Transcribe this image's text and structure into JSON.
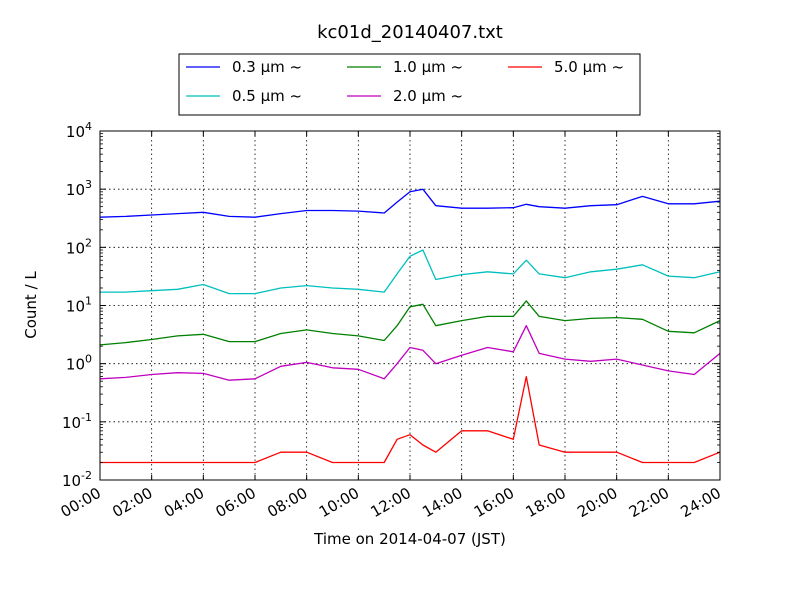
{
  "chart_data": {
    "type": "line",
    "title": "kc01d_20140407.txt",
    "xlabel": "Time on 2014-04-07 (JST)",
    "ylabel": "Count / L",
    "y_scale": "log",
    "ylim": [
      0.01,
      10000
    ],
    "x_range": [
      "00:00",
      "24:00"
    ],
    "x_tick_labels": [
      "00:00",
      "02:00",
      "04:00",
      "06:00",
      "08:00",
      "10:00",
      "12:00",
      "14:00",
      "16:00",
      "18:00",
      "20:00",
      "22:00",
      "24:00"
    ],
    "y_tick_labels": [
      {
        "base": "10",
        "exp": "-2"
      },
      {
        "base": "10",
        "exp": "-1"
      },
      {
        "base": "10",
        "exp": "0"
      },
      {
        "base": "10",
        "exp": "1"
      },
      {
        "base": "10",
        "exp": "2"
      },
      {
        "base": "10",
        "exp": "3"
      },
      {
        "base": "10",
        "exp": "4"
      }
    ],
    "grid": true,
    "legend_position": "top-center (above plot)",
    "series": [
      {
        "name": "0.3 μm ~",
        "color": "#0000ff",
        "x": [
          "00:00",
          "01:00",
          "02:00",
          "03:00",
          "04:00",
          "05:00",
          "06:00",
          "07:00",
          "08:00",
          "09:00",
          "10:00",
          "11:00",
          "11:30",
          "12:00",
          "12:30",
          "13:00",
          "14:00",
          "15:00",
          "16:00",
          "16:30",
          "17:00",
          "18:00",
          "19:00",
          "20:00",
          "21:00",
          "22:00",
          "23:00",
          "24:00"
        ],
        "values": [
          330,
          340,
          360,
          380,
          400,
          340,
          330,
          380,
          430,
          430,
          420,
          390,
          600,
          900,
          1000,
          520,
          470,
          470,
          480,
          550,
          500,
          470,
          520,
          540,
          750,
          560,
          560,
          620
        ]
      },
      {
        "name": "0.5 μm ~",
        "color": "#00bfbf",
        "x": [
          "00:00",
          "01:00",
          "02:00",
          "03:00",
          "04:00",
          "05:00",
          "06:00",
          "07:00",
          "08:00",
          "09:00",
          "10:00",
          "11:00",
          "11:30",
          "12:00",
          "12:30",
          "13:00",
          "14:00",
          "15:00",
          "16:00",
          "16:30",
          "17:00",
          "18:00",
          "19:00",
          "20:00",
          "21:00",
          "22:00",
          "23:00",
          "24:00"
        ],
        "values": [
          17,
          17,
          18,
          19,
          23,
          16,
          16,
          20,
          22,
          20,
          19,
          17,
          35,
          70,
          90,
          28,
          34,
          38,
          35,
          60,
          35,
          30,
          38,
          42,
          50,
          32,
          30,
          38
        ]
      },
      {
        "name": "1.0 μm ~",
        "color": "#008000",
        "x": [
          "00:00",
          "01:00",
          "02:00",
          "03:00",
          "04:00",
          "05:00",
          "06:00",
          "07:00",
          "08:00",
          "09:00",
          "10:00",
          "11:00",
          "11:30",
          "12:00",
          "12:30",
          "13:00",
          "14:00",
          "15:00",
          "16:00",
          "16:30",
          "17:00",
          "18:00",
          "19:00",
          "20:00",
          "21:00",
          "22:00",
          "23:00",
          "24:00"
        ],
        "values": [
          2.1,
          2.3,
          2.6,
          3.0,
          3.2,
          2.4,
          2.4,
          3.3,
          3.8,
          3.3,
          3.0,
          2.5,
          4.5,
          9.5,
          10.5,
          4.5,
          5.5,
          6.5,
          6.5,
          12,
          6.5,
          5.5,
          6.0,
          6.2,
          5.8,
          3.6,
          3.4,
          5.5
        ]
      },
      {
        "name": "2.0 μm ~",
        "color": "#bf00bf",
        "x": [
          "00:00",
          "01:00",
          "02:00",
          "03:00",
          "04:00",
          "05:00",
          "06:00",
          "07:00",
          "08:00",
          "09:00",
          "10:00",
          "11:00",
          "11:30",
          "12:00",
          "12:30",
          "13:00",
          "14:00",
          "15:00",
          "16:00",
          "16:30",
          "17:00",
          "18:00",
          "19:00",
          "20:00",
          "21:00",
          "22:00",
          "23:00",
          "24:00"
        ],
        "values": [
          0.55,
          0.58,
          0.65,
          0.7,
          0.68,
          0.52,
          0.55,
          0.9,
          1.05,
          0.85,
          0.8,
          0.55,
          1.0,
          1.9,
          1.7,
          1.0,
          1.4,
          1.9,
          1.6,
          4.5,
          1.5,
          1.2,
          1.1,
          1.2,
          0.95,
          0.75,
          0.65,
          1.5
        ]
      },
      {
        "name": "5.0 μm ~",
        "color": "#ff0000",
        "x": [
          "00:00",
          "01:00",
          "02:00",
          "03:00",
          "04:00",
          "05:00",
          "06:00",
          "07:00",
          "08:00",
          "09:00",
          "10:00",
          "11:00",
          "11:30",
          "12:00",
          "12:30",
          "13:00",
          "14:00",
          "15:00",
          "16:00",
          "16:30",
          "17:00",
          "18:00",
          "19:00",
          "20:00",
          "21:00",
          "22:00",
          "23:00",
          "24:00"
        ],
        "values": [
          0.02,
          0.02,
          0.02,
          0.02,
          0.02,
          0.02,
          0.02,
          0.03,
          0.03,
          0.02,
          0.02,
          0.02,
          0.05,
          0.06,
          0.04,
          0.03,
          0.07,
          0.07,
          0.05,
          0.6,
          0.04,
          0.03,
          0.03,
          0.03,
          0.02,
          0.02,
          0.02,
          0.03
        ]
      }
    ]
  }
}
